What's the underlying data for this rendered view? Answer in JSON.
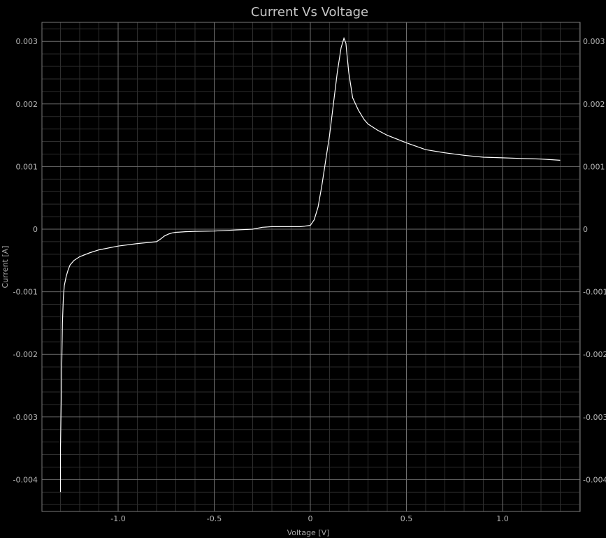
{
  "chart_data": {
    "type": "line",
    "title": "Current Vs Voltage",
    "xlabel": "Voltage [V]",
    "ylabel": "Current [A]",
    "xlim": [
      -1.4,
      1.4
    ],
    "ylim": [
      -0.0045,
      0.0033
    ],
    "x_ticks": [
      {
        "value": -1.0,
        "label": "-1.0"
      },
      {
        "value": -0.5,
        "label": "-0.5"
      },
      {
        "value": 0.0,
        "label": "0"
      },
      {
        "value": 0.5,
        "label": "0.5"
      },
      {
        "value": 1.0,
        "label": "1.0"
      }
    ],
    "y_ticks": [
      {
        "value": 0.003,
        "label": "0.003"
      },
      {
        "value": 0.002,
        "label": "0.002"
      },
      {
        "value": 0.001,
        "label": "0.001"
      },
      {
        "value": 0.0,
        "label": "0"
      },
      {
        "value": -0.001,
        "label": "-0.001"
      },
      {
        "value": -0.002,
        "label": "-0.002"
      },
      {
        "value": -0.003,
        "label": "-0.003"
      },
      {
        "value": -0.004,
        "label": "-0.004"
      }
    ],
    "grid": true,
    "colors": {
      "background": "#000000",
      "line": "#ffffff",
      "major_grid": "#6e6e6e",
      "minor_grid": "#2e2e2e"
    },
    "series": [
      {
        "x": [
          -1.3,
          -1.3,
          -1.295,
          -1.29,
          -1.285,
          -1.28,
          -1.27,
          -1.26,
          -1.25,
          -1.23,
          -1.2,
          -1.15,
          -1.1,
          -1.0,
          -0.9,
          -0.8,
          -0.78,
          -0.76,
          -0.74,
          -0.72,
          -0.7,
          -0.65,
          -0.6,
          -0.5,
          -0.4,
          -0.3,
          -0.25,
          -0.2,
          -0.1,
          -0.05,
          0.0,
          0.02,
          0.04,
          0.06,
          0.08,
          0.1,
          0.12,
          0.14,
          0.16,
          0.175,
          0.185,
          0.19,
          0.2,
          0.22,
          0.25,
          0.28,
          0.3,
          0.35,
          0.4,
          0.5,
          0.6,
          0.7,
          0.8,
          0.9,
          1.0,
          1.1,
          1.2,
          1.3
        ],
        "y": [
          -0.0042,
          -0.0035,
          -0.0025,
          -0.0015,
          -0.0011,
          -0.0009,
          -0.00075,
          -0.00065,
          -0.00057,
          -0.0005,
          -0.00044,
          -0.00038,
          -0.00033,
          -0.00027,
          -0.00023,
          -0.0002,
          -0.00016,
          -0.00011,
          -8e-05,
          -6e-05,
          -5e-05,
          -4e-05,
          -3.5e-05,
          -3e-05,
          -1.5e-05,
          0.0,
          3e-05,
          4e-05,
          4e-05,
          4e-05,
          6e-05,
          0.00015,
          0.00035,
          0.0007,
          0.0011,
          0.0015,
          0.002,
          0.0025,
          0.0029,
          0.00305,
          0.00297,
          0.0028,
          0.0025,
          0.0021,
          0.0019,
          0.00175,
          0.00168,
          0.00158,
          0.0015,
          0.00138,
          0.00127,
          0.00122,
          0.00118,
          0.00115,
          0.00114,
          0.00113,
          0.00112,
          0.0011
        ]
      }
    ]
  }
}
